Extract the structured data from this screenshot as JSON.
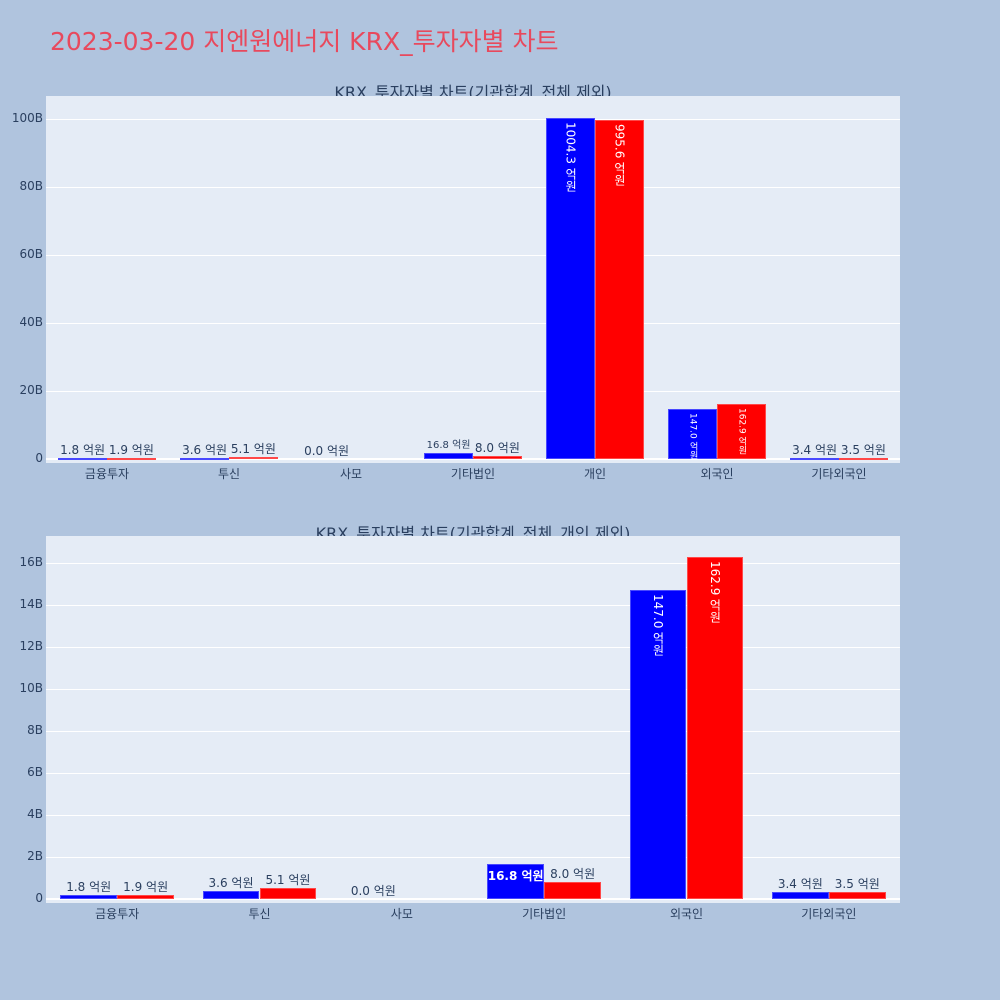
{
  "title": "2023-03-20 지엔원에너지 KRX_투자자별 차트",
  "colors": {
    "title": "#e8495d",
    "buy": "#0000ff",
    "sell": "#ff0000",
    "background": "#b0c4de",
    "plot_bg": "#e5ecf6"
  },
  "chart_data": [
    {
      "type": "bar",
      "title": "KRX_투자자별 차트(기관합계_전체 제외)",
      "categories": [
        "금융투자",
        "투신",
        "사모",
        "기타법인",
        "개인",
        "외국인",
        "기타외국인"
      ],
      "series": [
        {
          "name": "매수",
          "color": "#0000ff",
          "values": [
            0.18,
            0.36,
            0.0,
            1.68,
            100.43,
            14.7,
            0.34
          ],
          "labels": [
            "1.8 억원",
            "3.6 억원",
            "0.0 억원",
            "16.8 억원",
            "1004.3 억원",
            "147.0 억원",
            "3.4 억원"
          ]
        },
        {
          "name": "매도",
          "color": "#ff0000",
          "values": [
            0.19,
            0.51,
            0.0,
            0.8,
            99.56,
            16.29,
            0.35
          ],
          "labels": [
            "1.9 억원",
            "5.1 억원",
            "",
            "8.0 억원",
            "995.6 억원",
            "162.9 억원",
            "3.5 억원"
          ]
        }
      ],
      "yticks": [
        "0",
        "20B",
        "40B",
        "60B",
        "80B",
        "100B"
      ],
      "ytick_values": [
        0,
        20,
        40,
        60,
        80,
        100
      ],
      "ylim": [
        0,
        106.5
      ],
      "xlabel": "",
      "ylabel": "",
      "grid": true
    },
    {
      "type": "bar",
      "title": "KRX_투자자별 차트(기관합계_전체_개인 제외)",
      "categories": [
        "금융투자",
        "투신",
        "사모",
        "기타법인",
        "외국인",
        "기타외국인"
      ],
      "series": [
        {
          "name": "매수",
          "color": "#0000ff",
          "values": [
            0.18,
            0.36,
            0.0,
            1.68,
            14.7,
            0.34
          ],
          "labels": [
            "1.8 억원",
            "3.6 억원",
            "0.0 억원",
            "16.8 억원",
            "147.0 억원",
            "3.4 억원"
          ]
        },
        {
          "name": "매도",
          "color": "#ff0000",
          "values": [
            0.19,
            0.51,
            0.0,
            0.8,
            16.29,
            0.35
          ],
          "labels": [
            "1.9 억원",
            "5.1 억원",
            "",
            "8.0 억원",
            "162.9 억원",
            "3.5 억원"
          ]
        }
      ],
      "yticks": [
        "0",
        "2B",
        "4B",
        "6B",
        "8B",
        "10B",
        "12B",
        "14B",
        "16B"
      ],
      "ytick_values": [
        0,
        2,
        4,
        6,
        8,
        10,
        12,
        14,
        16
      ],
      "ylim": [
        0,
        17.3
      ],
      "xlabel": "",
      "ylabel": "",
      "grid": true
    }
  ]
}
